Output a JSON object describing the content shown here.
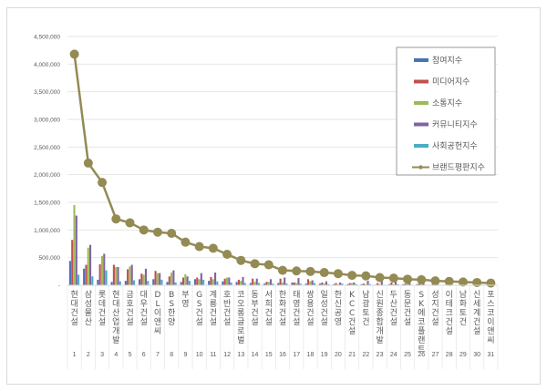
{
  "chart_data": {
    "type": "bar",
    "title": "",
    "xlabel": "",
    "ylabel": "",
    "ylim": [
      0,
      4500000
    ],
    "yticks": [
      "-",
      "500,000",
      "1,000,000",
      "1,500,000",
      "2,000,000",
      "2,500,000",
      "3,000,000",
      "3,500,000",
      "4,000,000",
      "4,500,000"
    ],
    "grid": true,
    "legend_position": "upper right",
    "categories": [
      "현대건설",
      "삼성물산",
      "롯데건설",
      "현대산업개발",
      "금호건설",
      "대우건설",
      "DL이앤씨",
      "BS한양",
      "부영",
      "GS건설",
      "계룡건설",
      "호반건설",
      "코오롱글로벌",
      "동부건설",
      "서희건설",
      "한화건설",
      "태영건설",
      "쌍용건설",
      "일성건설",
      "한신공영",
      "KCC건설",
      "남광토건",
      "신원종합개발",
      "두산건설",
      "동문건설",
      "SK에코플랜트",
      "성지건설",
      "이테크건설",
      "남화토건",
      "신세계건설",
      "포스코이앤씨"
    ],
    "ranks": [
      "1",
      "2",
      "3",
      "4",
      "5",
      "6",
      "7",
      "8",
      "9",
      "10",
      "11",
      "12",
      "13",
      "14",
      "15",
      "16",
      "17",
      "18",
      "19",
      "20",
      "21",
      "22",
      "23",
      "24",
      "25",
      "26",
      "27",
      "28",
      "29",
      "30",
      "31"
    ],
    "series": [
      {
        "name": "참여지수",
        "color": "#4a72b8",
        "type": "bar",
        "values": [
          440000,
          300000,
          100000,
          60000,
          80000,
          110000,
          110000,
          60000,
          60000,
          110000,
          80000,
          70000,
          60000,
          40000,
          30000,
          40000,
          50000,
          30000,
          30000,
          20000,
          20000,
          20000,
          10000,
          20000,
          20000,
          20000,
          10000,
          10000,
          5000,
          5000,
          5000
        ]
      },
      {
        "name": "미디어지수",
        "color": "#c0504d",
        "type": "bar",
        "values": [
          820000,
          370000,
          380000,
          370000,
          290000,
          210000,
          260000,
          160000,
          140000,
          140000,
          150000,
          120000,
          100000,
          120000,
          60000,
          120000,
          50000,
          110000,
          50000,
          40000,
          40000,
          30000,
          40000,
          50000,
          30000,
          30000,
          20000,
          20000,
          10000,
          10000,
          5000
        ]
      },
      {
        "name": "소통지수",
        "color": "#9bbb59",
        "type": "bar",
        "values": [
          1450000,
          680000,
          530000,
          330000,
          340000,
          190000,
          220000,
          230000,
          200000,
          110000,
          110000,
          140000,
          80000,
          60000,
          60000,
          50000,
          40000,
          70000,
          30000,
          20000,
          40000,
          20000,
          20000,
          20000,
          50000,
          30000,
          10000,
          10000,
          10000,
          10000,
          5000
        ]
      },
      {
        "name": "커뮤니티지수",
        "color": "#8064a2",
        "type": "bar",
        "values": [
          1260000,
          730000,
          570000,
          330000,
          370000,
          300000,
          220000,
          270000,
          160000,
          220000,
          230000,
          140000,
          150000,
          120000,
          110000,
          140000,
          130000,
          90000,
          70000,
          50000,
          50000,
          80000,
          120000,
          100000,
          60000,
          40000,
          40000,
          20000,
          20000,
          20000,
          10000
        ]
      },
      {
        "name": "사회공헌지수",
        "color": "#4bacc6",
        "type": "bar",
        "values": [
          190000,
          160000,
          270000,
          70000,
          90000,
          80000,
          100000,
          50000,
          80000,
          100000,
          70000,
          50000,
          40000,
          40000,
          30000,
          30000,
          30000,
          40000,
          20000,
          30000,
          20000,
          20000,
          10000,
          20000,
          10000,
          10000,
          10000,
          10000,
          5000,
          5000,
          5000
        ]
      },
      {
        "name": "브랜드평판지수",
        "color": "#948a54",
        "type": "line",
        "values": [
          4180000,
          2210000,
          1860000,
          1200000,
          1130000,
          1000000,
          960000,
          940000,
          780000,
          700000,
          670000,
          560000,
          450000,
          390000,
          370000,
          270000,
          260000,
          250000,
          230000,
          210000,
          180000,
          170000,
          140000,
          130000,
          110000,
          100000,
          80000,
          70000,
          60000,
          50000,
          40000
        ]
      }
    ]
  }
}
